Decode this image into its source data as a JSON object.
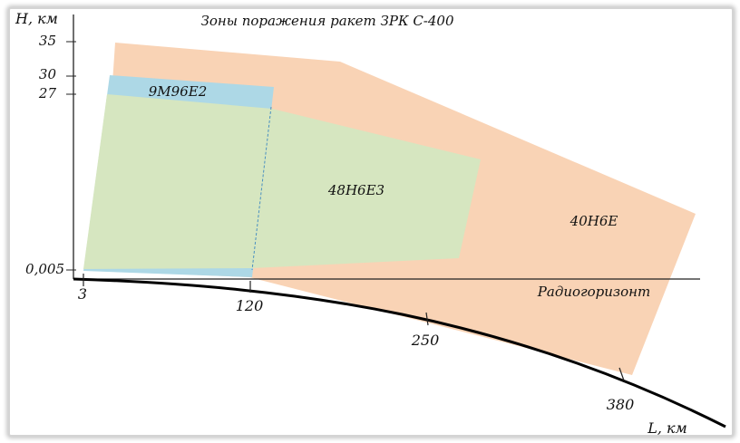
{
  "title": "Зоны поражения ракет ЗРК С-400",
  "y_axis_label": "H, км",
  "x_axis_label": "L, км",
  "horizon_label": "Радиогоризонт",
  "y_ticks": [
    "35",
    "30",
    "27",
    "0,005"
  ],
  "x_ticks": [
    "3",
    "120",
    "250",
    "380"
  ],
  "zones": [
    {
      "name": "9М96Е2",
      "color": "#add8e6"
    },
    {
      "name": "48Н6Е3",
      "color": "#d6e6c0"
    },
    {
      "name": "40Н6Е",
      "color": "#f9d3b5"
    }
  ]
}
